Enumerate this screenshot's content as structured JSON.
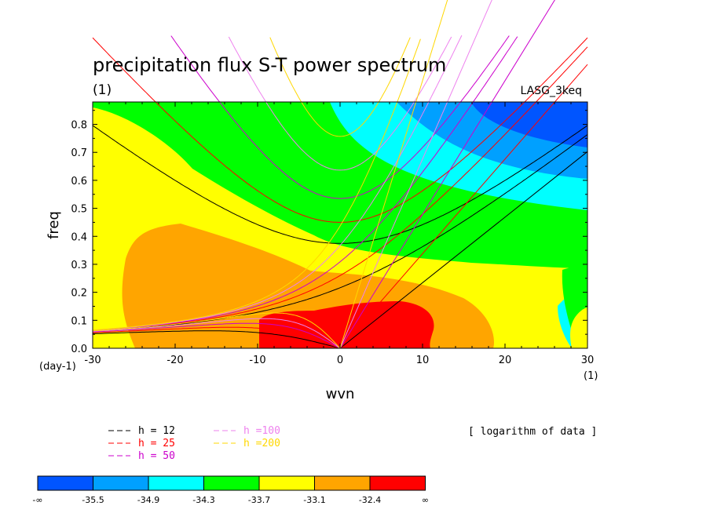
{
  "chart_data": {
    "type": "heatmap",
    "title": "precipitation flux S-T power spectrum",
    "title_unit": "(1)",
    "model_label": "LASG_3keq",
    "xlabel": "wvn",
    "ylabel": "freq",
    "x_unit": "(1)",
    "y_unit": "(day-1)",
    "xlim": [
      -30,
      30
    ],
    "ylim": [
      0,
      0.88
    ],
    "x_ticks": [
      -30,
      -20,
      -10,
      0,
      10,
      20,
      30
    ],
    "y_ticks": [
      0.0,
      0.1,
      0.2,
      0.3,
      0.4,
      0.5,
      0.6,
      0.7,
      0.8
    ],
    "y_tick_labels": [
      "0.0",
      "0.1",
      "0.2",
      "0.3",
      "0.4",
      "0.5",
      "0.6",
      "0.7",
      "0.8"
    ],
    "note": "[ logarithm of data ]",
    "contour_levels": [
      "-∞",
      "-35.5",
      "-34.9",
      "-34.3",
      "-33.7",
      "-33.1",
      "-32.4",
      "∞"
    ],
    "contour_colors": [
      "#0055ff",
      "#00a0ff",
      "#00ffff",
      "#00ff00",
      "#ffff00",
      "#ffa500",
      "#ff0000"
    ],
    "dispersion_curves": [
      {
        "label": "h = 12",
        "h": 12,
        "color": "#000000"
      },
      {
        "label": "h = 25",
        "h": 25,
        "color": "#ff0000"
      },
      {
        "label": "h = 50",
        "h": 50,
        "color": "#cc00cc"
      },
      {
        "label": "h =100",
        "h": 100,
        "color": "#ee82ee"
      },
      {
        "label": "h =200",
        "h": 200,
        "color": "#ffd700"
      }
    ]
  }
}
